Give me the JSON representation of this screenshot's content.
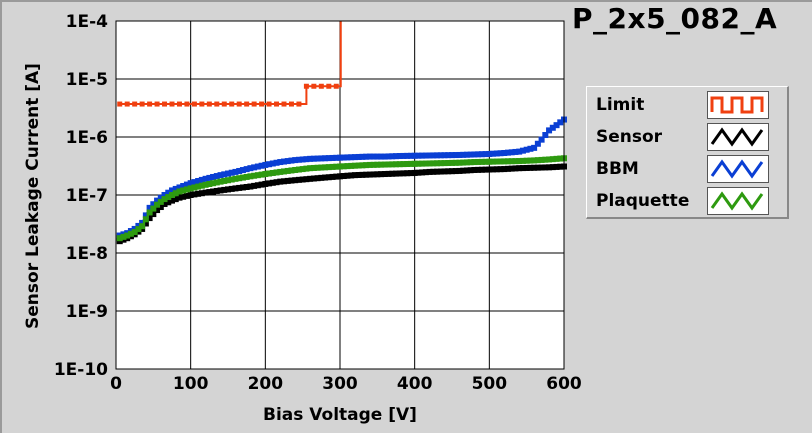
{
  "chart_data": {
    "type": "line",
    "title": "P_2x5_082_A",
    "xlabel": "Bias Voltage [V]",
    "ylabel": "Sensor Leakage Current [A]",
    "xlim": [
      0,
      600
    ],
    "ylim": [
      1e-10,
      0.0001
    ],
    "yscale": "log",
    "grid": true,
    "legend_position": "right",
    "x_ticks": [
      0,
      100,
      200,
      300,
      400,
      500,
      600
    ],
    "x_tick_labels": [
      "0",
      "100",
      "200",
      "300",
      "400",
      "500",
      "600"
    ],
    "y_ticks": [
      1e-10,
      1e-09,
      1e-08,
      1e-07,
      1e-06,
      1e-05,
      0.0001
    ],
    "y_tick_labels": [
      "1E-10",
      "1E-9",
      "1E-8",
      "1E-7",
      "1E-6",
      "1E-5",
      "1E-4"
    ],
    "series": [
      {
        "name": "Limit",
        "color": "#f04010",
        "step": true,
        "x": [
          5,
          50,
          100,
          150,
          200,
          250,
          255,
          300,
          301
        ],
        "y": [
          3.7e-06,
          3.7e-06,
          3.7e-06,
          3.7e-06,
          3.7e-06,
          3.7e-06,
          7.5e-06,
          7.5e-06,
          0.0001
        ]
      },
      {
        "name": "Sensor",
        "color": "#000000",
        "x": [
          5,
          15,
          25,
          35,
          45,
          55,
          65,
          75,
          85,
          100,
          120,
          140,
          160,
          180,
          200,
          220,
          240,
          260,
          280,
          300,
          320,
          340,
          360,
          380,
          400,
          420,
          440,
          460,
          480,
          500,
          520,
          540,
          560,
          580,
          600
        ],
        "y": [
          1.6e-08,
          1.8e-08,
          2.1e-08,
          2.6e-08,
          4e-08,
          5.5e-08,
          7e-08,
          8e-08,
          9e-08,
          1e-07,
          1.1e-07,
          1.2e-07,
          1.3e-07,
          1.4e-07,
          1.55e-07,
          1.7e-07,
          1.8e-07,
          1.9e-07,
          2e-07,
          2.1e-07,
          2.2e-07,
          2.25e-07,
          2.3e-07,
          2.35e-07,
          2.4e-07,
          2.5e-07,
          2.55e-07,
          2.6e-07,
          2.7e-07,
          2.75e-07,
          2.8e-07,
          2.9e-07,
          2.95e-07,
          3e-07,
          3.1e-07
        ]
      },
      {
        "name": "BBM",
        "color": "#0a3fd4",
        "x": [
          5,
          15,
          25,
          35,
          45,
          55,
          65,
          75,
          85,
          100,
          120,
          140,
          160,
          180,
          200,
          220,
          240,
          260,
          280,
          300,
          320,
          340,
          360,
          380,
          400,
          420,
          440,
          460,
          480,
          500,
          520,
          540,
          560,
          570,
          580,
          590,
          600
        ],
        "y": [
          2e-08,
          2.2e-08,
          2.6e-08,
          3.3e-08,
          6e-08,
          8e-08,
          1e-07,
          1.2e-07,
          1.35e-07,
          1.6e-07,
          1.9e-07,
          2.2e-07,
          2.5e-07,
          2.9e-07,
          3.3e-07,
          3.7e-07,
          4e-07,
          4.2e-07,
          4.3e-07,
          4.4e-07,
          4.5e-07,
          4.6e-07,
          4.6e-07,
          4.7e-07,
          4.75e-07,
          4.8e-07,
          4.85e-07,
          4.9e-07,
          5e-07,
          5.1e-07,
          5.3e-07,
          5.6e-07,
          6.5e-07,
          9e-07,
          1.3e-06,
          1.6e-06,
          2e-06
        ]
      },
      {
        "name": "Plaquette",
        "color": "#2e9a10",
        "x": [
          5,
          15,
          25,
          35,
          45,
          55,
          65,
          75,
          85,
          100,
          120,
          140,
          160,
          180,
          200,
          220,
          240,
          260,
          280,
          300,
          320,
          340,
          360,
          380,
          400,
          420,
          440,
          460,
          480,
          500,
          520,
          540,
          560,
          580,
          600
        ],
        "y": [
          1.8e-08,
          2e-08,
          2.3e-08,
          2.9e-08,
          5e-08,
          6.8e-08,
          8.5e-08,
          1e-07,
          1.15e-07,
          1.3e-07,
          1.5e-07,
          1.7e-07,
          1.9e-07,
          2.1e-07,
          2.3e-07,
          2.5e-07,
          2.7e-07,
          2.9e-07,
          3e-07,
          3.1e-07,
          3.2e-07,
          3.3e-07,
          3.35e-07,
          3.4e-07,
          3.45e-07,
          3.5e-07,
          3.55e-07,
          3.6e-07,
          3.7e-07,
          3.75e-07,
          3.8e-07,
          3.85e-07,
          3.95e-07,
          4.1e-07,
          4.3e-07
        ]
      }
    ]
  }
}
